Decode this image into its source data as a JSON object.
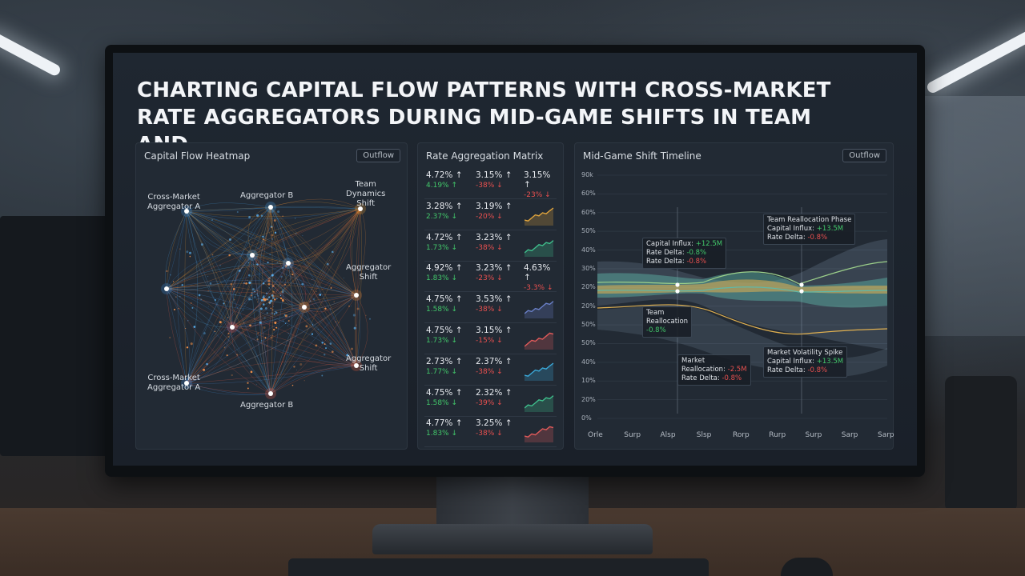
{
  "page": {
    "title": "CHARTING CAPITAL FLOW PATTERNS WITH CROSS-MARKET RATE AGGREGATORS DURING MID-GAME SHIFTS IN TEAM AND"
  },
  "heatmap": {
    "title": "Capital Flow Heatmap",
    "button": "Outflow",
    "nodes": [
      {
        "label": "Cross-Market\nAggregator A"
      },
      {
        "label": "Aggregator B"
      },
      {
        "label": "Team\nDynamics\nShift"
      },
      {
        "label": "Aggregator\nShift"
      },
      {
        "label": "Aggregator\nShift"
      },
      {
        "label": "Cross-Market\nAggregator A"
      },
      {
        "label": "Aggregator B"
      }
    ]
  },
  "matrix": {
    "title": "Rate Aggregation Matrix",
    "rows": [
      {
        "c1": "4.72% ↑",
        "c1s": "4.19% ↑",
        "c2": "3.15% ↑",
        "c2s": "-38% ↓",
        "c3": "3.15% ↑",
        "c3s": "-23% ↓",
        "spark": false
      },
      {
        "c1": "3.28% ↑",
        "c1s": "2.37% ↓",
        "c2": "3.19% ↑",
        "c2s": "-20% ↓",
        "spark": true,
        "trend": "up",
        "sparkColor": "#e0a43c"
      },
      {
        "c1": "4.72% ↑",
        "c1s": "1.73% ↓",
        "c2": "3.23% ↑",
        "c2s": "-38% ↓",
        "spark": true,
        "trend": "up",
        "sparkColor": "#3fbf8c"
      },
      {
        "c1": "4.92% ↑",
        "c1s": "1.83% ↓",
        "c2": "3.23% ↑",
        "c2s": "-23% ↓",
        "c3": "4.63% ↑",
        "c3s": "-3.3% ↓",
        "spark": false
      },
      {
        "c1": "4.75% ↑",
        "c1s": "1.58% ↓",
        "c2": "3.53% ↑",
        "c2s": "-38% ↓",
        "spark": true,
        "trend": "up",
        "sparkColor": "#6a80c8"
      },
      {
        "c1": "4.75% ↑",
        "c1s": "1.73% ↓",
        "c2": "3.15% ↑",
        "c2s": "-15% ↓",
        "spark": true,
        "trend": "up",
        "sparkColor": "#e05a5a"
      },
      {
        "c1": "2.73% ↑",
        "c1s": "1.77% ↓",
        "c2": "2.37% ↑",
        "c2s": "-38% ↓",
        "spark": true,
        "trend": "up",
        "sparkColor": "#3aa8d8"
      },
      {
        "c1": "4.75% ↑",
        "c1s": "1.58% ↓",
        "c2": "2.32% ↑",
        "c2s": "-39% ↓",
        "spark": true,
        "trend": "up",
        "sparkColor": "#3fbf8c"
      },
      {
        "c1": "4.77% ↑",
        "c1s": "1.83% ↓",
        "c2": "3.25% ↑",
        "c2s": "-38% ↓",
        "spark": true,
        "trend": "up",
        "sparkColor": "#e05a5a"
      }
    ]
  },
  "timeline": {
    "title": "Mid-Game Shift Timeline",
    "button": "Outflow",
    "yticks": [
      "90k",
      "60%",
      "60%",
      "50%",
      "40%",
      "30%",
      "20%",
      "20%",
      "50%",
      "50%",
      "40%",
      "10%",
      "20%",
      "0%"
    ],
    "xticks": [
      "Orle",
      "Surp",
      "Alsp",
      "Slsp",
      "Rorp",
      "Rurp",
      "Surp",
      "Sarp",
      "Sarp"
    ],
    "annotations": {
      "a1": {
        "l1": "Capital Influx: ",
        "v1": "+12.5M",
        "l2": "Rate Delta: ",
        "v2": "-0.8%",
        "l3": "Rate Delta: ",
        "v3": "-0.8%"
      },
      "a2": {
        "l1": "Team Reallocation Phase",
        "l2": "Capital Influx: ",
        "v2": "+13.5M",
        "l3": "Rate Delta: ",
        "v3": "-0.8%"
      },
      "a3": {
        "l1": "Team",
        "l2": "Reallocation",
        "v3": "-0.8%"
      },
      "a4": {
        "l1": "Market",
        "l2": "Reallocation: ",
        "v2": "-2.5M",
        "l3": "Rate Delta: ",
        "v3": "-0.8%"
      },
      "a5": {
        "l1": "Market Volatility Spike",
        "l2": "Capital Influx: ",
        "v2": "+13.5M",
        "l3": "Rate Delta: ",
        "v3": "-0.8%"
      }
    },
    "colors": {
      "teal": "#5fb8a8",
      "gold": "#e0b050",
      "slate": "#8aa0b8",
      "green": "#9cd08a"
    }
  }
}
